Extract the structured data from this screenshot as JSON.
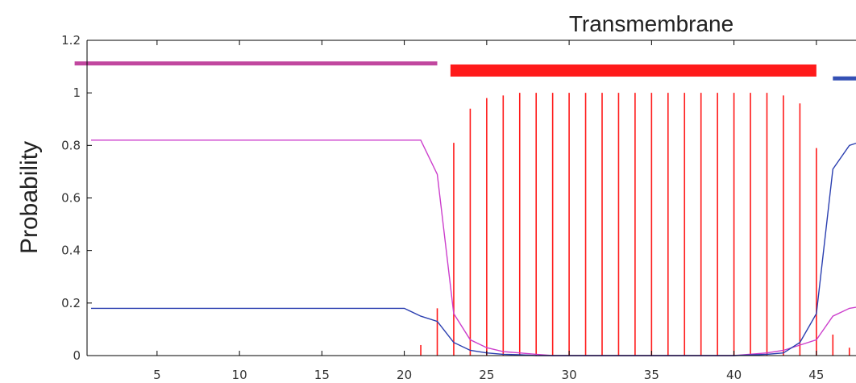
{
  "chart_data": {
    "type": "line",
    "title": "Transmembrane",
    "ylabel": "Probability",
    "xlabel": "",
    "xlim": [
      0,
      48
    ],
    "ylim": [
      0,
      1.2
    ],
    "x_ticks": [
      5,
      10,
      15,
      20,
      25,
      30,
      35,
      40,
      45
    ],
    "y_ticks": [
      "0",
      "0.2",
      "0.4",
      "0.6",
      "0.8",
      "1",
      "1.2"
    ],
    "grid": false,
    "colors": {
      "transmembrane": "#ff1a1a",
      "inside": "#2b3fb0",
      "outside": "#cc3fcc",
      "outside_bar": "#c1479f",
      "inside_bar": "#3450b4",
      "axis": "#000000"
    },
    "series": [
      {
        "style": "impulses",
        "color_key": "transmembrane",
        "x": [
          21,
          22,
          23,
          24,
          25,
          26,
          27,
          28,
          29,
          30,
          31,
          32,
          33,
          34,
          35,
          36,
          37,
          38,
          39,
          40,
          41,
          42,
          43,
          44,
          45,
          46,
          47
        ],
        "y": [
          0.04,
          0.18,
          0.81,
          0.94,
          0.98,
          0.99,
          1.0,
          1.0,
          1.0,
          1.0,
          1.0,
          1.0,
          1.0,
          1.0,
          1.0,
          1.0,
          1.0,
          1.0,
          1.0,
          1.0,
          1.0,
          1.0,
          0.99,
          0.96,
          0.79,
          0.08,
          0.03
        ]
      },
      {
        "style": "line",
        "color_key": "outside",
        "x": [
          1,
          21,
          22,
          23,
          24,
          25,
          26,
          27,
          28,
          29,
          40,
          42,
          43,
          44,
          45,
          46,
          47,
          48
        ],
        "y": [
          0.82,
          0.82,
          0.69,
          0.16,
          0.06,
          0.03,
          0.015,
          0.01,
          0.005,
          0.0,
          0.0,
          0.01,
          0.02,
          0.04,
          0.06,
          0.15,
          0.18,
          0.19
        ]
      },
      {
        "style": "line",
        "color_key": "inside",
        "x": [
          1,
          20,
          21,
          22,
          23,
          24,
          25,
          26,
          27,
          28,
          29,
          40,
          42,
          43,
          44,
          45,
          46,
          47,
          48
        ],
        "y": [
          0.18,
          0.18,
          0.15,
          0.13,
          0.05,
          0.02,
          0.01,
          0.005,
          0.003,
          0.0,
          0.0,
          0.0,
          0.005,
          0.01,
          0.05,
          0.16,
          0.71,
          0.8,
          0.82
        ]
      }
    ],
    "topology_bars": [
      {
        "color_key": "outside_bar",
        "x_start": 0,
        "x_end": 22,
        "y": 1.112
      },
      {
        "color_key": "transmembrane",
        "x_start": 22.8,
        "x_end": 45,
        "y": 1.085
      },
      {
        "color_key": "inside_bar",
        "x_start": 46,
        "x_end": 48,
        "y": 1.055
      }
    ]
  }
}
